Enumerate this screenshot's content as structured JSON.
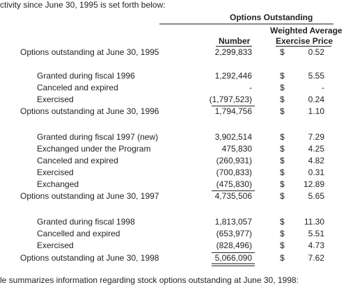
{
  "top_text": "ctivity since June 30, 1995 is set forth below:",
  "bottom_text": "le summarizes information regarding stock options outstanding at June 30, 1998:",
  "headers": {
    "group": "Options Outstanding",
    "weighted_line1": "Weighted Average",
    "weighted_line2": "Exercise Price",
    "number": "Number"
  },
  "rows": [
    {
      "label": "Options outstanding at June 30, 1995",
      "number": "2,299,833",
      "dollar": "$",
      "price": "0.52"
    },
    {
      "label": "Granted during fiscal 1996",
      "number": "1,292,446",
      "dollar": "$",
      "price": "5.55"
    },
    {
      "label": "Canceled and expired",
      "number": "-",
      "dollar": "$",
      "price": "-"
    },
    {
      "label": "Exercised",
      "number": "(1,797,523)",
      "dollar": "$",
      "price": "0.24"
    },
    {
      "label": "Options outstanding at June 30, 1996",
      "number": "1,794,756",
      "dollar": "$",
      "price": "1.10"
    },
    {
      "label": "Granted during fiscal 1997 (new)",
      "number": "3,902,514",
      "dollar": "$",
      "price": "7.29"
    },
    {
      "label": "Exchanged under the Program",
      "number": "475,830",
      "dollar": "$",
      "price": "4.25"
    },
    {
      "label": "Canceled and expired",
      "number": "(260,931)",
      "dollar": "$",
      "price": "4.82"
    },
    {
      "label": "Exercised",
      "number": "(700,833)",
      "dollar": "$",
      "price": "0.31"
    },
    {
      "label": "Exchanged",
      "number": "(475,830)",
      "dollar": "$",
      "price": "12.89"
    },
    {
      "label": "Options outstanding at June 30, 1997",
      "number": "4,735,506",
      "dollar": "$",
      "price": "5.65"
    },
    {
      "label": "Granted during fiscal 1998",
      "number": "1,813,057",
      "dollar": "$",
      "price": "11.30"
    },
    {
      "label": "Cancelled and expired",
      "number": "(653,977)",
      "dollar": "$",
      "price": "5.51"
    },
    {
      "label": "Exercised",
      "number": "(828,496)",
      "dollar": "$",
      "price": "4.73"
    },
    {
      "label": "Options outstanding at June 30, 1998",
      "number": "5,066,090",
      "dollar": "$",
      "price": "7.62"
    }
  ]
}
